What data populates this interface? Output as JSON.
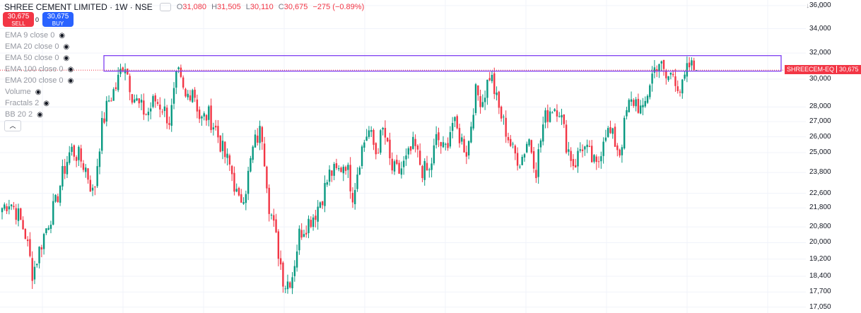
{
  "header": {
    "title": "SHREE CEMENT LIMITED · 1W · NSE",
    "ohlc": [
      {
        "label": "O",
        "value": "31,080"
      },
      {
        "label": "H",
        "value": "31,505"
      },
      {
        "label": "L",
        "value": "30,110"
      },
      {
        "label": "C",
        "value": "30,675"
      }
    ],
    "change": "−275 (−0.89%)"
  },
  "trade": {
    "sell_price": "30,675",
    "sell_label": "SELL",
    "buy_price": "30,675",
    "buy_label": "BUY",
    "spread": "0"
  },
  "indicators": [
    "EMA 9 close 0",
    "EMA 20 close 0",
    "EMA 50 close 0",
    "EMA 100 close 0",
    "EMA 200 close 0",
    "Volume",
    "Fractals 2",
    "BB 20 2"
  ],
  "price_scale": [
    "36,000",
    "34,000",
    "32,000",
    "30,000",
    "28,000",
    "27,000",
    "26,000",
    "25,000",
    "23,800",
    "22,600",
    "21,800",
    "20,800",
    "20,000",
    "19,200",
    "18,400",
    "17,700",
    "17,050"
  ],
  "price_tag": {
    "symbol": "SHREECEM-EQ",
    "price": "30,675"
  },
  "colors": {
    "up": "#089981",
    "down": "#f23645",
    "box": "#7e3ff2",
    "sell": "#f23645",
    "buy": "#2962ff"
  },
  "icons": {
    "collapse": "chevron-up-icon",
    "eye": "eye-icon"
  },
  "chart_data": {
    "type": "candlestick",
    "title": "SHREE CEMENT LIMITED · 1W · NSE",
    "y_scale": "log",
    "ylim": [
      16800,
      36500
    ],
    "last_close": 30675,
    "resistance_zone": [
      30600,
      31800
    ],
    "close_path": [
      21800,
      22200,
      21500,
      20500,
      18500,
      19800,
      21000,
      22000,
      23800,
      25200,
      24800,
      24000,
      22400,
      26500,
      28500,
      29500,
      31500,
      29000,
      28000,
      27500,
      28500,
      28000,
      27000,
      30500,
      28500,
      29500,
      27000,
      27500,
      26500,
      25000,
      24000,
      22000,
      23000,
      25500,
      26500,
      22000,
      20000,
      18000,
      18400,
      20500,
      21000,
      21500,
      22500,
      23800,
      23800,
      24500,
      22500,
      25000,
      26500,
      25000,
      26500,
      24000,
      23800,
      24500,
      25500,
      24000,
      23800,
      26000,
      25000,
      27000,
      26000,
      25000,
      29000,
      28500,
      30500,
      28000,
      26500,
      25000,
      24500,
      26000,
      24000,
      27000,
      28000,
      28000,
      25500,
      24200,
      25500,
      24800,
      24000,
      26500,
      26000,
      25000,
      28000,
      28500,
      27500,
      30000,
      31500,
      30000,
      30500,
      29000,
      31000,
      30675
    ]
  }
}
